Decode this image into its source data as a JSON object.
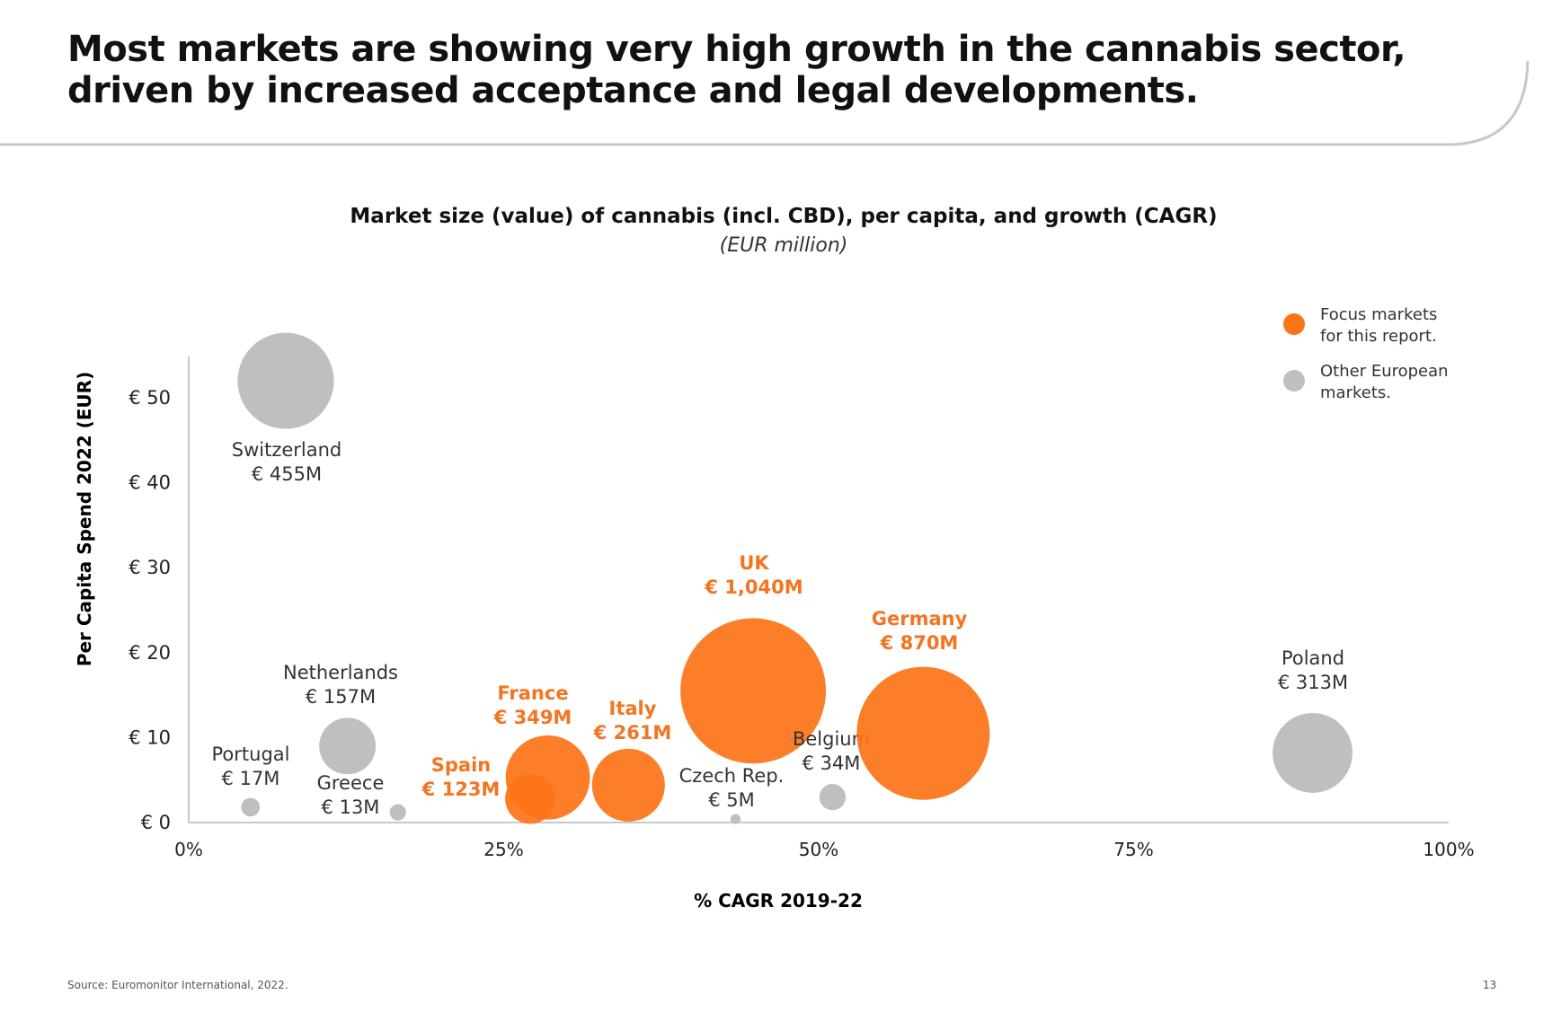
{
  "header": {
    "title_line1": "Most markets are showing very high growth in the cannabis sector,",
    "title_line2": "driven by increased acceptance and legal developments."
  },
  "footer": {
    "source": "Source: Euromonitor International, 2022.",
    "page_number": "13"
  },
  "colors": {
    "focus": "#FC7418",
    "focus_text": "#F47421",
    "other": "#BFBFBF"
  },
  "chart_data": {
    "type": "bubble",
    "title": "Market size (value) of cannabis (incl. CBD), per capita, and growth (CAGR)",
    "subtitle": "(EUR million)",
    "xlabel": "% CAGR 2019-22",
    "ylabel": "Per Capita Spend 2022 (EUR)",
    "xlim": [
      0,
      100
    ],
    "ylim": [
      0,
      55
    ],
    "x_ticks": [
      {
        "v": 0,
        "label": "0%"
      },
      {
        "v": 25,
        "label": "25%"
      },
      {
        "v": 50,
        "label": "50%"
      },
      {
        "v": 75,
        "label": "75%"
      },
      {
        "v": 100,
        "label": "100%"
      }
    ],
    "y_ticks": [
      {
        "v": 0,
        "label": "€ 0"
      },
      {
        "v": 10,
        "label": "€ 10"
      },
      {
        "v": 20,
        "label": "€ 20"
      },
      {
        "v": 30,
        "label": "€ 30"
      },
      {
        "v": 40,
        "label": "€ 40"
      },
      {
        "v": 50,
        "label": "€ 50"
      }
    ],
    "grid": false,
    "legend_position": "top-right",
    "legend": [
      {
        "group": "focus",
        "line1": "Focus markets",
        "line2": "for this report."
      },
      {
        "group": "other",
        "line1": "Other European",
        "line2": "markets."
      }
    ],
    "points": [
      {
        "name": "Switzerland",
        "label": "€ 455M",
        "x": 7.7,
        "y": 52,
        "size": 455,
        "group": "other"
      },
      {
        "name": "Portugal",
        "label": "€ 17M",
        "x": 4.9,
        "y": 1.8,
        "size": 17,
        "group": "other"
      },
      {
        "name": "Netherlands",
        "label": "€ 157M",
        "x": 12.6,
        "y": 9.0,
        "size": 157,
        "group": "other"
      },
      {
        "name": "Greece",
        "label": "€ 13M",
        "x": 16.6,
        "y": 1.2,
        "size": 13,
        "group": "other"
      },
      {
        "name": "France",
        "label": "€ 349M",
        "x": 28.5,
        "y": 5.3,
        "size": 349,
        "group": "focus"
      },
      {
        "name": "Spain",
        "label": "€ 123M",
        "x": 27.1,
        "y": 2.8,
        "size": 123,
        "group": "focus"
      },
      {
        "name": "Italy",
        "label": "€ 261M",
        "x": 34.9,
        "y": 4.4,
        "size": 261,
        "group": "focus"
      },
      {
        "name": "UK",
        "label": "€ 1,040M",
        "x": 44.8,
        "y": 15.5,
        "size": 1040,
        "group": "focus"
      },
      {
        "name": "Czech Rep.",
        "label": "€ 5M",
        "x": 43.4,
        "y": 0.4,
        "size": 5,
        "group": "other"
      },
      {
        "name": "Belgium",
        "label": "€ 34M",
        "x": 51.1,
        "y": 3.0,
        "size": 34,
        "group": "other"
      },
      {
        "name": "Germany",
        "label": "€ 870M",
        "x": 58.3,
        "y": 10.5,
        "size": 870,
        "group": "focus"
      },
      {
        "name": "Poland",
        "label": "€ 313M",
        "x": 89.2,
        "y": 8.2,
        "size": 313,
        "group": "other"
      }
    ]
  }
}
